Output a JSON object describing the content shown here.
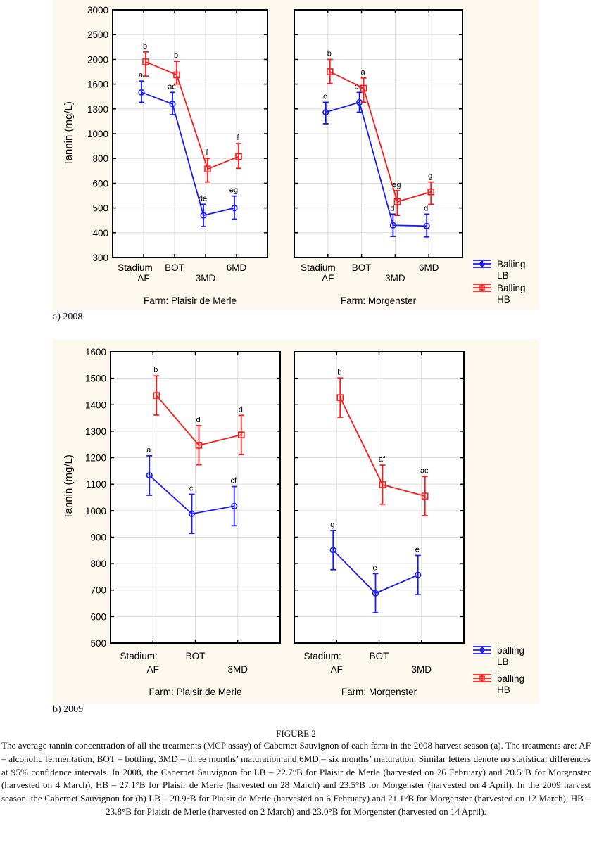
{
  "figure": {
    "title": "FIGURE 2",
    "caption": "The average tannin concentration of all the treatments (MCP assay) of Cabernet Sauvignon of each farm in the 2008 harvest season (a). The treatments are: AF – alcoholic fermentation, BOT – bottling, 3MD – three months’ maturation and 6MD – six months’ maturation. Similar letters denote no statistical differences at 95% confidence intervals. In 2008, the Cabernet Sauvignon for LB – 22.7°B for Plaisir de Merle (harvested on 26 February) and 20.5°B for Morgenster (harvested on 4 March), HB – 27.1°B for Plaisir de Merle (harvested on 28 March) and 23.5°B for Morgenster (harvested on 4 April). In the 2009 harvest season, the Cabernet Sauvignon for (b) LB – 20.9°B for Plaisir de Merle (harvested on 6 February) and 21.1°B for Morgenster (harvested on 12 March), HB – 23.8°B for Plaisir de Merle (harvested on 2 March) and 23.0°B for Morgenster (harvested on 14 April).",
    "panel_labels": [
      "a) 2008",
      "b) 2009"
    ]
  },
  "colors": {
    "lb": "#1a1aff",
    "hb": "#ff1a1a",
    "chart_bg": "#fdf8ee",
    "grid": "#dcdcdc"
  },
  "chart_data": [
    {
      "type": "line",
      "title": "2008",
      "ylabel": "Tannin (mg/L)",
      "yscale": "tick-indexed",
      "yticks": [
        300,
        400,
        500,
        600,
        800,
        1000,
        1300,
        1600,
        2000,
        2500,
        3000
      ],
      "ylim": [
        300,
        3000
      ],
      "grid": true,
      "legend_position": "bottom-right",
      "xaxis_name": "Stadium",
      "categories": [
        "AF",
        "BOT",
        "3MD",
        "6MD"
      ],
      "xtick_rows": [
        [
          "Stadium",
          "BOT",
          "6MD"
        ],
        [
          "AF",
          "3MD"
        ]
      ],
      "panels": [
        {
          "farm_label": "Farm: Plaisir de Merle",
          "series": [
            {
              "name": "Balling LB",
              "key": "lb",
              "marker": "circle",
              "values": [
                1500,
                1360,
                470,
                500
              ],
              "lower": [
                1380,
                1230,
                425,
                455
              ],
              "upper": [
                1650,
                1500,
                515,
                548
              ],
              "letters": [
                "a",
                "ac",
                "de",
                "eg"
              ]
            },
            {
              "name": "Balling HB",
              "key": "hb",
              "marker": "square",
              "values": [
                1960,
                1750,
                715,
                815
              ],
              "lower": [
                1730,
                1600,
                610,
                720
              ],
              "upper": [
                2150,
                1970,
                800,
                920
              ],
              "letters": [
                "b",
                "b",
                "f",
                "f"
              ]
            }
          ]
        },
        {
          "farm_label": "Farm: Morgenster",
          "series": [
            {
              "name": "Balling LB",
              "key": "lb",
              "marker": "circle",
              "values": [
                1260,
                1380,
                430,
                427
              ],
              "lower": [
                1120,
                1260,
                385,
                383
              ],
              "upper": [
                1380,
                1500,
                475,
                475
              ],
              "letters": [
                "c",
                "ac",
                "d",
                "d"
              ]
            },
            {
              "name": "Balling HB",
              "key": "hb",
              "marker": "square",
              "values": [
                1800,
                1550,
                525,
                565
              ],
              "lower": [
                1610,
                1380,
                470,
                515
              ],
              "upper": [
                2000,
                1700,
                570,
                610
              ],
              "letters": [
                "b",
                "a",
                "eg",
                "g"
              ]
            }
          ]
        }
      ],
      "legend": [
        {
          "line1": "Balling",
          "line2": "LB",
          "key": "lb",
          "marker": "circle"
        },
        {
          "line1": "Balling",
          "line2": "HB",
          "key": "hb",
          "marker": "square"
        }
      ]
    },
    {
      "type": "line",
      "title": "2009",
      "ylabel": "Tannin (mg/L)",
      "yscale": "linear",
      "yticks": [
        500,
        600,
        700,
        800,
        900,
        1000,
        1100,
        1200,
        1300,
        1400,
        1500,
        1600
      ],
      "ylim": [
        500,
        1600
      ],
      "grid": true,
      "legend_position": "bottom-right",
      "xaxis_name": "Stadium:",
      "categories": [
        "AF",
        "BOT",
        "3MD"
      ],
      "xtick_rows": [
        [
          "Stadium:",
          "BOT"
        ],
        [
          "AF",
          "3MD"
        ]
      ],
      "panels": [
        {
          "farm_label": "Farm: Plaisir de Merle",
          "series": [
            {
              "name": "balling LB",
              "key": "lb",
              "marker": "circle",
              "values": [
                1133,
                988,
                1017
              ],
              "lower": [
                1058,
                914,
                943
              ],
              "upper": [
                1207,
                1062,
                1091
              ],
              "letters": [
                "a",
                "c",
                "cf"
              ]
            },
            {
              "name": "balling HB",
              "key": "hb",
              "marker": "square",
              "values": [
                1435,
                1247,
                1286
              ],
              "lower": [
                1361,
                1173,
                1212
              ],
              "upper": [
                1509,
                1321,
                1360
              ],
              "letters": [
                "b",
                "d",
                "d"
              ]
            }
          ]
        },
        {
          "farm_label": "Farm: Morgenster",
          "series": [
            {
              "name": "balling LB",
              "key": "lb",
              "marker": "circle",
              "values": [
                851,
                688,
                757
              ],
              "lower": [
                777,
                614,
                683
              ],
              "upper": [
                925,
                762,
                831
              ],
              "letters": [
                "g",
                "e",
                "e"
              ]
            },
            {
              "name": "balling HB",
              "key": "hb",
              "marker": "square",
              "values": [
                1427,
                1098,
                1055
              ],
              "lower": [
                1353,
                1024,
                981
              ],
              "upper": [
                1501,
                1172,
                1129
              ],
              "letters": [
                "b",
                "af",
                "ac"
              ]
            }
          ]
        }
      ],
      "legend": [
        {
          "line1": "balling",
          "line2": "LB",
          "key": "lb",
          "marker": "circle"
        },
        {
          "line1": "balling",
          "line2": "HB",
          "key": "hb",
          "marker": "square"
        }
      ]
    }
  ]
}
